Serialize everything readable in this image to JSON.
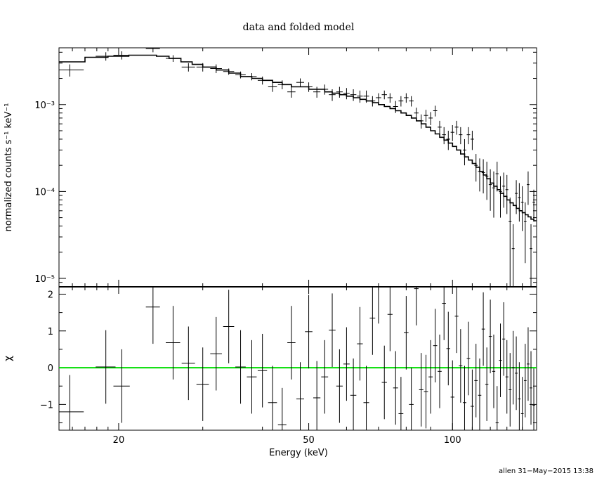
{
  "chart_data": [
    {
      "type": "step",
      "panel": "top",
      "title": "data and folded model",
      "ylabel": "normalized counts s⁻¹ keV⁻¹",
      "yscale": "log",
      "xscale": "log",
      "xlim": [
        15.0,
        150.0
      ],
      "ylim": [
        8e-06,
        0.0045
      ],
      "ytick_labels": [
        "10⁻³",
        "10⁻⁴",
        "10⁻⁵"
      ],
      "data": {
        "x": [
          15.8,
          18.8,
          20.3,
          23.6,
          26.0,
          28.0,
          30.0,
          32.0,
          34.0,
          36.0,
          38.0,
          40.0,
          42.0,
          44.0,
          46.0,
          48.0,
          50.0,
          52.0,
          54.0,
          56.0,
          58.0,
          60.0,
          62.0,
          64.0,
          66.0,
          68.0,
          70.0,
          72.0,
          74.0,
          76.0,
          78.0,
          80.0,
          82.0,
          84.0,
          86.0,
          88.0,
          90.0,
          92.0,
          94.0,
          96.0,
          98.0,
          100.0,
          102.0,
          104.0,
          106.0,
          108.0,
          110.0,
          112.0,
          114.0,
          116.0,
          118.0,
          120.0,
          122.0,
          124.0,
          126.0,
          128.0,
          130.0,
          132.0,
          134.0,
          136.0,
          138.0,
          140.0,
          142.0,
          144.0,
          146.0,
          148.0
        ],
        "y": [
          0.0025,
          0.0036,
          0.0037,
          0.0044,
          0.0034,
          0.0027,
          0.0027,
          0.0026,
          0.0024,
          0.0022,
          0.0021,
          0.0019,
          0.0016,
          0.0017,
          0.0014,
          0.0018,
          0.0016,
          0.0014,
          0.0015,
          0.0013,
          0.0014,
          0.00135,
          0.0013,
          0.00125,
          0.00125,
          0.0011,
          0.0012,
          0.0013,
          0.0012,
          0.00095,
          0.0011,
          0.0012,
          0.0011,
          0.0008,
          0.00065,
          0.00075,
          0.0007,
          0.00085,
          0.00055,
          0.00045,
          0.0004,
          0.00048,
          0.00055,
          0.00045,
          0.0003,
          0.00045,
          0.0004,
          0.0002,
          0.00017,
          0.000165,
          0.00015,
          0.00012,
          0.00011,
          0.00016,
          0.0001,
          0.000115,
          0.000105,
          4.5e-05,
          2.2e-05,
          9.5e-05,
          8.5e-05,
          7.5e-05,
          4.5e-05,
          0.00012,
          2.2e-05,
          7.5e-05
        ],
        "yerr": [
          0.0004,
          0.0004,
          0.0004,
          0.0004,
          0.0003,
          0.0003,
          0.0003,
          0.0003,
          0.0002,
          0.0002,
          0.0002,
          0.0002,
          0.0002,
          0.0002,
          0.0002,
          0.0002,
          0.0002,
          0.0002,
          0.0002,
          0.0002,
          0.0002,
          0.0002,
          0.0002,
          0.0002,
          0.0002,
          0.00015,
          0.00015,
          0.00015,
          0.00015,
          0.00015,
          0.00015,
          0.00015,
          0.00015,
          0.00012,
          0.00012,
          0.00012,
          0.00012,
          0.00012,
          0.0001,
          0.0001,
          0.0001,
          0.0001,
          0.0001,
          0.0001,
          0.0001,
          0.0001,
          0.0001,
          7e-05,
          7e-05,
          7e-05,
          7e-05,
          6e-05,
          6e-05,
          6e-05,
          5e-05,
          5e-05,
          5e-05,
          4e-05,
          2e-05,
          4e-05,
          4e-05,
          4e-05,
          3e-05,
          5e-05,
          2e-05,
          3e-05
        ],
        "xerr": [
          1.1,
          0.9,
          0.8,
          0.8,
          0.9,
          0.9,
          0.9,
          0.9,
          0.9,
          0.9,
          0.9,
          0.9,
          0.9,
          0.9,
          0.9,
          0.9,
          0.9,
          0.9,
          0.9,
          0.9,
          0.9,
          0.9,
          0.9,
          0.9,
          0.9,
          0.9,
          0.9,
          0.9,
          0.9,
          0.9,
          0.9,
          0.9,
          0.9,
          0.9,
          0.9,
          0.9,
          0.9,
          0.9,
          0.9,
          0.9,
          0.9,
          0.9,
          0.9,
          0.9,
          0.9,
          0.9,
          0.9,
          0.9,
          0.9,
          0.9,
          0.9,
          0.9,
          0.9,
          0.9,
          0.9,
          0.9,
          0.9,
          0.9,
          0.9,
          0.9,
          0.9,
          0.9,
          0.9,
          0.9,
          0.9,
          0.9
        ]
      },
      "model": {
        "edges": [
          15.0,
          17.0,
          19.0,
          21.0,
          22.5,
          24.0,
          25.5,
          27.0,
          28.5,
          30.0,
          32.0,
          34.0,
          36.0,
          38.0,
          40.0,
          42.0,
          44.0,
          46.0,
          48.0,
          50.0,
          52.0,
          54.0,
          56.0,
          58.0,
          60.0,
          62.0,
          64.0,
          66.0,
          68.0,
          70.0,
          72.0,
          74.0,
          76.0,
          78.0,
          80.0,
          82.0,
          84.0,
          86.0,
          88.0,
          90.0,
          92.0,
          94.0,
          96.0,
          98.0,
          100.0,
          102.0,
          104.0,
          106.0,
          108.0,
          110.0,
          112.0,
          114.0,
          116.0,
          118.0,
          120.0,
          122.0,
          124.0,
          126.0,
          128.0,
          130.0,
          132.0,
          134.0,
          136.0,
          138.0,
          140.0,
          142.0,
          144.0,
          146.0,
          148.0,
          150.0
        ],
        "values": [
          0.0031,
          0.0035,
          0.0036,
          0.0037,
          0.0037,
          0.0036,
          0.0034,
          0.0031,
          0.0029,
          0.0027,
          0.0025,
          0.0023,
          0.0021,
          0.002,
          0.0019,
          0.0018,
          0.0017,
          0.0016,
          0.0016,
          0.0015,
          0.0015,
          0.0014,
          0.00135,
          0.0013,
          0.00125,
          0.0012,
          0.00115,
          0.0011,
          0.00105,
          0.001,
          0.00095,
          0.0009,
          0.00085,
          0.0008,
          0.00075,
          0.0007,
          0.00065,
          0.0006,
          0.00055,
          0.0005,
          0.00046,
          0.00042,
          0.00039,
          0.00036,
          0.00033,
          0.0003,
          0.00027,
          0.00025,
          0.00023,
          0.00021,
          0.00019,
          0.00017,
          0.000155,
          0.00014,
          0.000125,
          0.000115,
          0.000105,
          9.5e-05,
          8.8e-05,
          8e-05,
          7.4e-05,
          6.9e-05,
          6.4e-05,
          6e-05,
          5.7e-05,
          5.4e-05,
          5.1e-05,
          4.8e-05,
          4.6e-05
        ]
      }
    },
    {
      "type": "errorbar",
      "panel": "bottom",
      "ylabel": "χ",
      "xlabel": "Energy (keV)",
      "xscale": "log",
      "xlim": [
        15.0,
        150.0
      ],
      "ylim": [
        -1.7,
        2.2
      ],
      "xtick_labels": [
        "20",
        "50",
        "100"
      ],
      "ytick_labels": [
        "2",
        "1",
        "0",
        "−1"
      ],
      "reference_line": {
        "y": 0,
        "color": "#00dd00"
      },
      "data": {
        "x": [
          15.8,
          18.8,
          20.3,
          23.6,
          26.0,
          28.0,
          30.0,
          32.0,
          34.0,
          36.0,
          38.0,
          40.0,
          42.0,
          44.0,
          46.0,
          48.0,
          50.0,
          52.0,
          54.0,
          56.0,
          58.0,
          60.0,
          62.0,
          64.0,
          66.0,
          68.0,
          70.0,
          72.0,
          74.0,
          76.0,
          78.0,
          80.0,
          82.0,
          84.0,
          86.0,
          88.0,
          90.0,
          92.0,
          94.0,
          96.0,
          98.0,
          100.0,
          102.0,
          104.0,
          106.0,
          108.0,
          110.0,
          112.0,
          114.0,
          116.0,
          118.0,
          120.0,
          122.0,
          124.0,
          126.0,
          128.0,
          130.0,
          132.0,
          134.0,
          136.0,
          138.0,
          140.0,
          142.0,
          144.0,
          146.0,
          148.0
        ],
        "y": [
          -1.2,
          0.02,
          -0.5,
          1.65,
          0.68,
          0.12,
          -0.45,
          0.38,
          1.12,
          0.02,
          -0.25,
          -0.08,
          -0.95,
          -1.55,
          0.68,
          -0.85,
          0.98,
          -0.82,
          -0.25,
          1.02,
          -0.5,
          0.1,
          -0.75,
          0.65,
          -0.95,
          1.35,
          2.2,
          -0.4,
          1.45,
          -0.55,
          -1.25,
          0.95,
          -1.0,
          2.15,
          -0.6,
          -0.65,
          -0.25,
          0.6,
          -0.1,
          1.75,
          0.52,
          -0.8,
          1.4,
          0.05,
          -0.95,
          0.25,
          -1.05,
          -0.35,
          -0.75,
          1.05,
          -0.45,
          0.85,
          -0.1,
          -1.5,
          0.2,
          0.78,
          -0.25,
          -0.6,
          0.0,
          -0.15,
          -0.85,
          -1.25,
          -0.35,
          0.1,
          -0.55,
          -1.02
        ],
        "yerr": [
          1.0,
          1.0,
          1.0,
          1.0,
          1.0,
          1.0,
          1.0,
          1.0,
          1.0,
          1.0,
          1.0,
          1.0,
          1.0,
          1.0,
          1.0,
          1.0,
          1.0,
          1.0,
          1.0,
          1.0,
          1.0,
          1.0,
          1.0,
          1.0,
          1.0,
          1.0,
          1.0,
          1.0,
          1.0,
          1.0,
          1.0,
          1.0,
          1.0,
          1.0,
          1.0,
          1.0,
          1.0,
          1.0,
          1.0,
          1.0,
          1.0,
          1.0,
          1.0,
          1.0,
          1.0,
          1.0,
          1.0,
          1.0,
          1.0,
          1.0,
          1.0,
          1.0,
          1.0,
          1.0,
          1.0,
          1.0,
          1.0,
          1.0,
          1.0,
          1.0,
          1.0,
          1.0,
          1.0,
          1.0,
          1.0,
          1.0
        ]
      }
    }
  ],
  "footer": "allen 31−May−2015 13:38"
}
